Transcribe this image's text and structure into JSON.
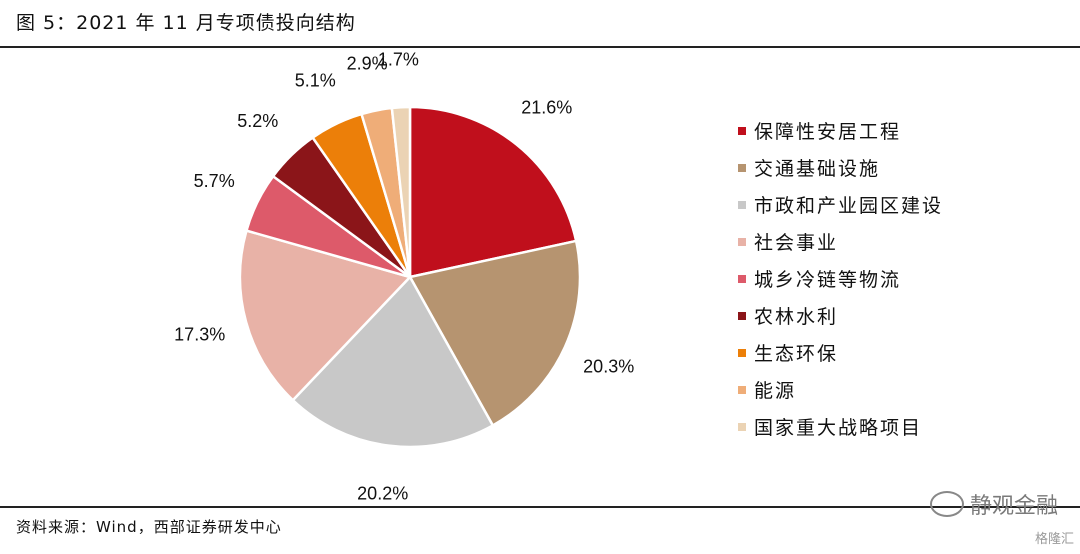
{
  "header": {
    "title": "图 5：2021 年 11 月专项债投向结构"
  },
  "footer": {
    "source": "资料来源：Wind，西部证券研发中心"
  },
  "watermark": {
    "text": "静观金融",
    "sub": "格隆汇"
  },
  "chart_data": {
    "type": "pie",
    "title": "",
    "categories": [
      "保障性安居工程",
      "交通基础设施",
      "市政和产业园区建设",
      "社会事业",
      "城乡冷链等物流",
      "农林水利",
      "生态环保",
      "能源",
      "国家重大战略项目"
    ],
    "values": [
      21.6,
      20.3,
      20.2,
      17.3,
      5.7,
      5.2,
      5.1,
      2.9,
      1.7
    ],
    "labels": [
      "21.6%",
      "20.3%",
      "20.2%",
      "17.3%",
      "5.7%",
      "5.2%",
      "5.1%",
      "2.9%",
      "1.7%"
    ],
    "colors": [
      "#c00f1c",
      "#b69470",
      "#c8c8c8",
      "#e8b2a7",
      "#dd5a6a",
      "#8b1519",
      "#ec7f09",
      "#efad78",
      "#ebd3b4"
    ],
    "legend_position": "right"
  }
}
